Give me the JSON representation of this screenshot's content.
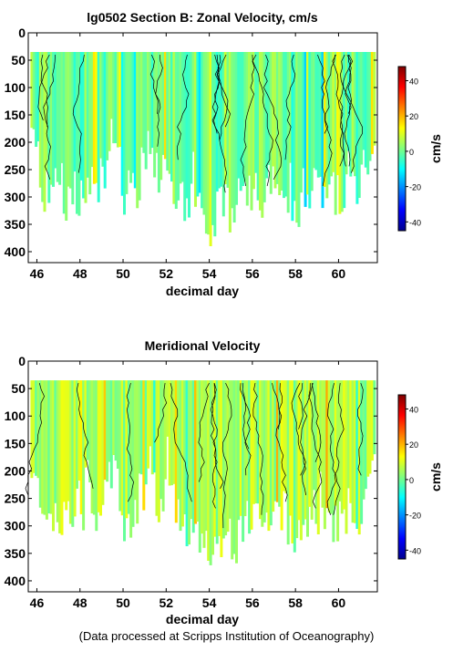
{
  "footer_note": "(Data processed at Scripps Institution of Oceanography)",
  "chart_data": [
    {
      "type": "heatmap",
      "title": "lg0502 Section B: Zonal Velocity, cm/s",
      "xlabel": "decimal day",
      "ylabel": "",
      "xlim": [
        45.6,
        61.8
      ],
      "ylim": [
        420,
        0
      ],
      "y_inverted": true,
      "xticks": [
        46,
        48,
        50,
        52,
        54,
        56,
        58,
        60
      ],
      "yticks": [
        0,
        50,
        100,
        150,
        200,
        250,
        300,
        350,
        400
      ],
      "data_top_depth": 35,
      "max_depth_profile": {
        "x": [
          45.7,
          46.0,
          46.3,
          46.6,
          47.0,
          47.3,
          47.6,
          48.0,
          48.4,
          48.8,
          49.2,
          49.6,
          50.0,
          50.4,
          50.8,
          51.2,
          51.6,
          52.0,
          52.4,
          52.8,
          53.2,
          53.6,
          54.0,
          54.4,
          54.8,
          55.2,
          55.6,
          56.0,
          56.4,
          56.8,
          57.2,
          57.6,
          58.0,
          58.4,
          58.8,
          59.2,
          59.6,
          60.0,
          60.4,
          60.8,
          61.2,
          61.6
        ],
        "depth": [
          210,
          230,
          290,
          295,
          285,
          300,
          295,
          290,
          260,
          300,
          220,
          180,
          290,
          310,
          250,
          190,
          300,
          230,
          320,
          310,
          300,
          330,
          370,
          310,
          320,
          330,
          270,
          290,
          300,
          270,
          260,
          290,
          320,
          310,
          280,
          300,
          290,
          300,
          260,
          300,
          230,
          200
        ]
      },
      "colorbar": {
        "label": "cm/s",
        "range": [
          -45,
          48
        ],
        "ticks": [
          40,
          20,
          0,
          -20,
          -40
        ]
      },
      "dominant_value_cm_s": 0
    },
    {
      "type": "heatmap",
      "title": "Meridional Velocity",
      "xlabel": "decimal day",
      "ylabel": "",
      "xlim": [
        45.6,
        61.8
      ],
      "ylim": [
        420,
        0
      ],
      "y_inverted": true,
      "xticks": [
        46,
        48,
        50,
        52,
        54,
        56,
        58,
        60
      ],
      "yticks": [
        0,
        50,
        100,
        150,
        200,
        250,
        300,
        350,
        400
      ],
      "data_top_depth": 35,
      "max_depth_profile": {
        "x": [
          45.7,
          46.0,
          46.3,
          46.6,
          47.0,
          47.3,
          47.6,
          48.0,
          48.4,
          48.8,
          49.2,
          49.6,
          50.0,
          50.4,
          50.8,
          51.2,
          51.6,
          52.0,
          52.4,
          52.8,
          53.2,
          53.6,
          54.0,
          54.4,
          54.8,
          55.2,
          55.6,
          56.0,
          56.4,
          56.8,
          57.2,
          57.6,
          58.0,
          58.4,
          58.8,
          59.2,
          59.6,
          60.0,
          60.4,
          60.8,
          61.2,
          61.6
        ],
        "depth": [
          210,
          230,
          290,
          295,
          285,
          300,
          295,
          290,
          260,
          300,
          220,
          180,
          290,
          310,
          250,
          190,
          300,
          230,
          320,
          310,
          300,
          330,
          370,
          310,
          320,
          330,
          270,
          290,
          300,
          270,
          260,
          290,
          320,
          310,
          280,
          300,
          290,
          300,
          260,
          300,
          230,
          200
        ]
      },
      "colorbar": {
        "label": "cm/s",
        "range": [
          -45,
          48
        ],
        "ticks": [
          40,
          20,
          0,
          -20,
          -40
        ]
      },
      "dominant_value_cm_s": 5
    }
  ]
}
